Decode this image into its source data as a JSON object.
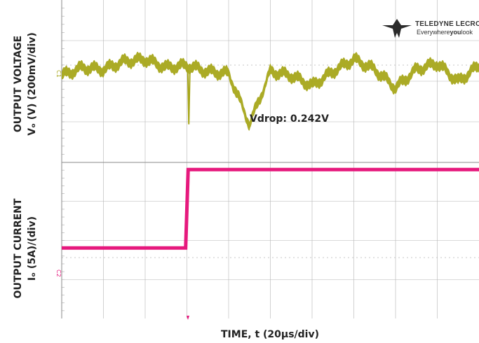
{
  "logo": {
    "brand": "TELEDYNE LECROY",
    "tagline_pre": "Everywhere",
    "tagline_bold": "you",
    "tagline_post": "look"
  },
  "colors": {
    "ch1": "#a7a61a",
    "ch2": "#e6197d",
    "grid": "#b5b5b5",
    "frame": "#8a8a8a"
  },
  "chart_data": [
    {
      "type": "line",
      "panel": "top",
      "ylabel_line1": "OUTPUT VOLTAGE",
      "ylabel_line2": "Vₒ (V) (200mV/div)",
      "channel_marker": "C1",
      "annotation": "Vdrop: 0.242V",
      "x": [
        0,
        10,
        20,
        30,
        40,
        50,
        60,
        70,
        80,
        90,
        100,
        110,
        120,
        130,
        140,
        150,
        160,
        170,
        180,
        190,
        200
      ],
      "series": [
        {
          "values": [
            0.0,
            0.04,
            0.03,
            0.07,
            0.08,
            0.04,
            0.05,
            0.02,
            0.01,
            -0.24,
            0.02,
            0.0,
            -0.05,
            0.02,
            0.08,
            0.03,
            -0.06,
            0.03,
            0.06,
            -0.03,
            0.05
          ]
        }
      ]
    },
    {
      "type": "line",
      "panel": "bottom",
      "ylabel_line1": "OUTPUT CURRENT",
      "ylabel_line2": "Iₒ (5A)/(div)",
      "channel_marker": "C2",
      "x": [
        0,
        59.4,
        59.4,
        60.6,
        60.6,
        200
      ],
      "series": [
        {
          "values": [
            9.0,
            9.0,
            9.0,
            19.0,
            19.0,
            19.0
          ]
        }
      ]
    }
  ],
  "xlabel": "TIME, t (20µs/div)"
}
